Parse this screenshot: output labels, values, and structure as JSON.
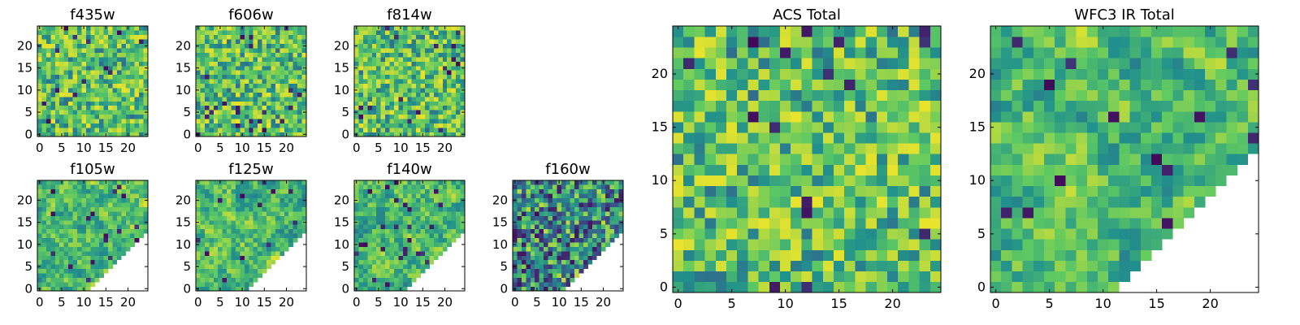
{
  "figure": {
    "colormap": [
      "#440154",
      "#3b528b",
      "#21918c",
      "#5ec962",
      "#fde725"
    ],
    "axis_color": "#000000",
    "empty_region_color": "#ffffff"
  },
  "chart_data": [
    {
      "type": "heatmap",
      "title": "f435w",
      "grid_size": 25,
      "xlim": [
        0,
        24
      ],
      "ylim": [
        0,
        24
      ],
      "xticks": [
        0,
        5,
        10,
        15,
        20
      ],
      "yticks": [
        0,
        5,
        10,
        15,
        20
      ],
      "mask": null,
      "value_range": [
        0,
        1
      ],
      "texture": "noise",
      "seed": 11
    },
    {
      "type": "heatmap",
      "title": "f606w",
      "grid_size": 25,
      "xlim": [
        0,
        24
      ],
      "ylim": [
        0,
        24
      ],
      "xticks": [
        0,
        5,
        10,
        15,
        20
      ],
      "yticks": [
        0,
        5,
        10,
        15,
        20
      ],
      "mask": null,
      "value_range": [
        0,
        1
      ],
      "texture": "noise",
      "seed": 23
    },
    {
      "type": "heatmap",
      "title": "f814w",
      "grid_size": 25,
      "xlim": [
        0,
        24
      ],
      "ylim": [
        0,
        24
      ],
      "xticks": [
        0,
        5,
        10,
        15,
        20
      ],
      "yticks": [
        0,
        5,
        10,
        15,
        20
      ],
      "mask": null,
      "value_range": [
        0,
        1
      ],
      "texture": "noise",
      "seed": 37
    },
    {
      "type": "heatmap",
      "title": "f105w",
      "grid_size": 25,
      "xlim": [
        0,
        24
      ],
      "ylim": [
        0,
        24
      ],
      "xticks": [
        0,
        5,
        10,
        15,
        20
      ],
      "yticks": [
        0,
        5,
        10,
        15,
        20
      ],
      "mask": "lower-right-diagonal",
      "value_range": [
        0,
        1
      ],
      "texture": "smooth",
      "seed": 41
    },
    {
      "type": "heatmap",
      "title": "f125w",
      "grid_size": 25,
      "xlim": [
        0,
        24
      ],
      "ylim": [
        0,
        24
      ],
      "xticks": [
        0,
        5,
        10,
        15,
        20
      ],
      "yticks": [
        0,
        5,
        10,
        15,
        20
      ],
      "mask": "lower-right-diagonal",
      "value_range": [
        0,
        1
      ],
      "texture": "smooth",
      "seed": 53
    },
    {
      "type": "heatmap",
      "title": "f140w",
      "grid_size": 25,
      "xlim": [
        0,
        24
      ],
      "ylim": [
        0,
        24
      ],
      "xticks": [
        0,
        5,
        10,
        15,
        20
      ],
      "yticks": [
        0,
        5,
        10,
        15,
        20
      ],
      "mask": "lower-right-diagonal",
      "value_range": [
        0,
        1
      ],
      "texture": "smooth",
      "seed": 67
    },
    {
      "type": "heatmap",
      "title": "f160w",
      "grid_size": 25,
      "xlim": [
        0,
        24
      ],
      "ylim": [
        0,
        24
      ],
      "xticks": [
        0,
        5,
        10,
        15,
        20
      ],
      "yticks": [
        0,
        5,
        10,
        15,
        20
      ],
      "mask": "lower-right-diagonal",
      "value_range": [
        0,
        1
      ],
      "texture": "dark-noise",
      "seed": 79
    },
    {
      "type": "heatmap",
      "title": "ACS Total",
      "grid_size": 25,
      "xlim": [
        0,
        24
      ],
      "ylim": [
        0,
        24
      ],
      "xticks": [
        0,
        5,
        10,
        15,
        20
      ],
      "yticks": [
        0,
        5,
        10,
        15,
        20
      ],
      "mask": null,
      "value_range": [
        0,
        1
      ],
      "texture": "noise",
      "seed": 97
    },
    {
      "type": "heatmap",
      "title": "WFC3 IR Total",
      "grid_size": 25,
      "xlim": [
        0,
        24
      ],
      "ylim": [
        0,
        24
      ],
      "xticks": [
        0,
        5,
        10,
        15,
        20
      ],
      "yticks": [
        0,
        5,
        10,
        15,
        20
      ],
      "mask": "lower-right-diagonal",
      "value_range": [
        0,
        1
      ],
      "texture": "smooth",
      "seed": 101
    }
  ]
}
